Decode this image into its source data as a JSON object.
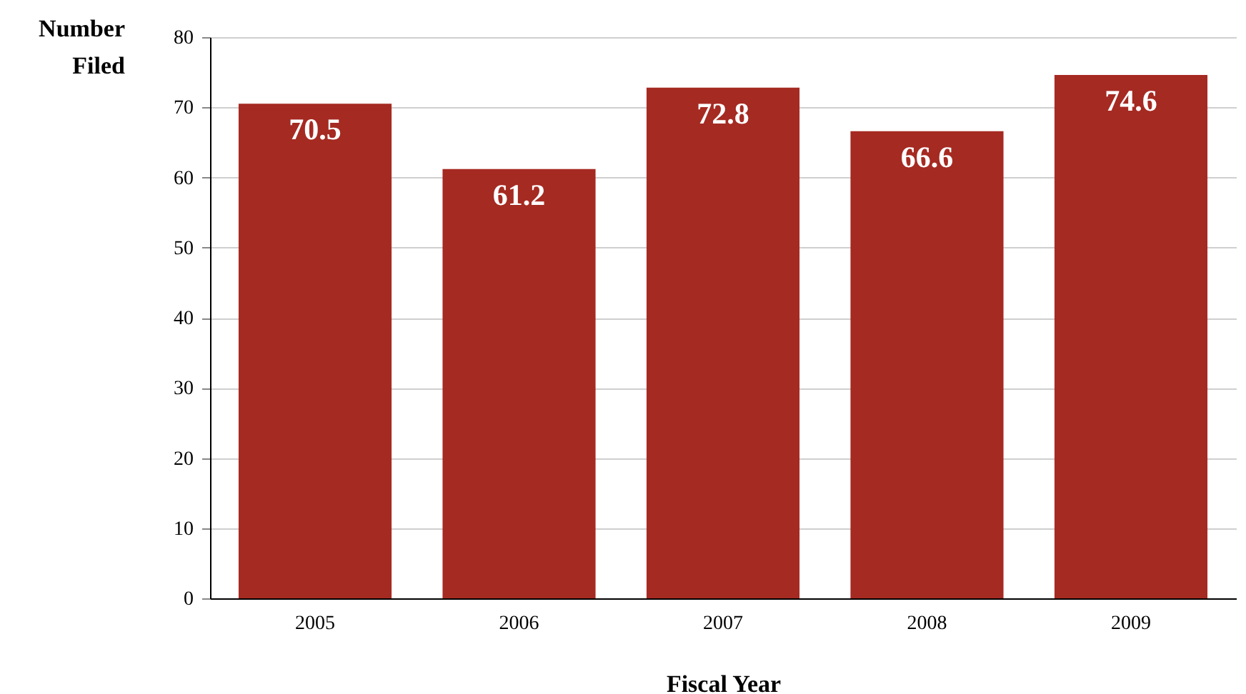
{
  "chart_data": {
    "type": "bar",
    "xlabel": "Fiscal Year",
    "ylabel": "Number Filed",
    "categories": [
      "2005",
      "2006",
      "2007",
      "2008",
      "2009"
    ],
    "values": [
      70.5,
      61.2,
      72.8,
      66.6,
      74.6
    ],
    "color": "#a52a22",
    "ylim": [
      0,
      80
    ],
    "yticks": [
      0,
      10,
      20,
      30,
      40,
      50,
      60,
      70,
      80
    ],
    "grid": "y",
    "data_labels": true
  }
}
